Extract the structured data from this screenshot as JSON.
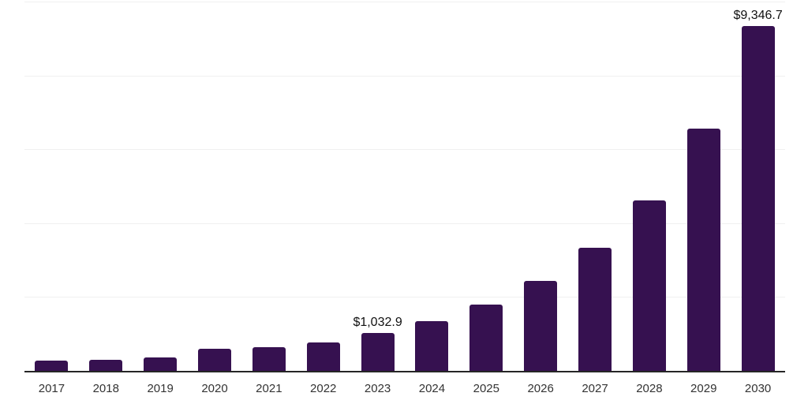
{
  "chart_data": {
    "type": "bar",
    "title": "",
    "xlabel": "",
    "ylabel": "",
    "legend": "none",
    "gridlines": "horizontal",
    "categories": [
      "2017",
      "2018",
      "2019",
      "2020",
      "2021",
      "2022",
      "2023",
      "2024",
      "2025",
      "2026",
      "2027",
      "2028",
      "2029",
      "2030"
    ],
    "values": [
      280,
      310,
      355,
      590,
      635,
      780,
      1032.9,
      1350,
      1790,
      2440,
      3340,
      4620,
      6550,
      9346.7
    ],
    "data_labels": {
      "2023": "$1,032.9",
      "2030": "$9,346.7"
    },
    "ylim": [
      0,
      10000
    ],
    "grid_interval": 2000,
    "colors": {
      "bar": "#361150",
      "gridline": "#f0f0f0",
      "axis": "#262626",
      "tick_label": "#333333",
      "data_label": "#111111",
      "background": "#ffffff"
    }
  }
}
